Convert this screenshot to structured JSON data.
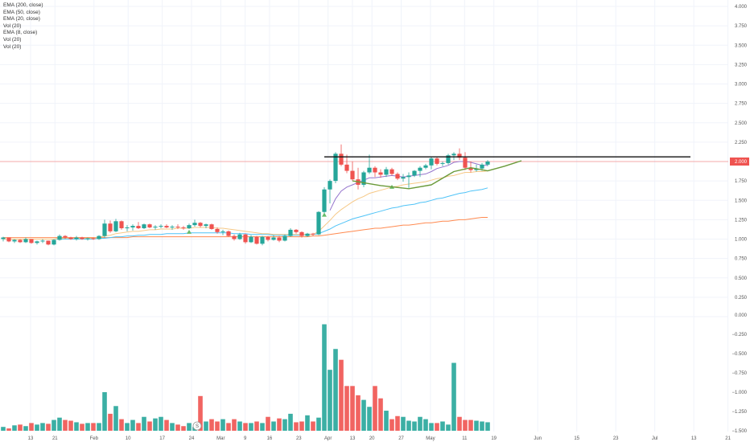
{
  "legend": [
    "EMA (200, close)",
    "EMA (50, close)",
    "EMA (20, close)",
    "Vol (20)",
    "EMA (8, close)",
    "Vol (20)",
    "Vol (20)"
  ],
  "price_badge": "2.000",
  "colors": {
    "up": "#26a69a",
    "down": "#ef5350",
    "ema8": "#9575cd",
    "ema20": "#f6c886",
    "ema50": "#4fc3f7",
    "ema200": "#ff8a50",
    "resistance": "#111111",
    "cup": "#6a9a3a",
    "price_line": "#f4a8a8",
    "grid": "#f0f3fa"
  },
  "chart_data": {
    "type": "candlestick",
    "x_ticks": [
      "13",
      "21",
      "Feb",
      "10",
      "17",
      "24",
      "Mar",
      "9",
      "16",
      "23",
      "Apr",
      "13",
      "20",
      "27",
      "May",
      "11",
      "19",
      "Jun",
      "15",
      "23",
      "Jul",
      "13",
      "21"
    ],
    "price_ticks": [
      "4.000",
      "3.750",
      "3.500",
      "3.250",
      "3.000",
      "2.750",
      "2.500",
      "2.250",
      "2.000",
      "1.750",
      "1.500",
      "1.250",
      "1.000",
      "0.750",
      "0.500",
      "0.250"
    ],
    "volume_ticks": [
      "0.000",
      "−0.250",
      "−0.500",
      "−0.750",
      "−1.000",
      "−1.250",
      "−1.500"
    ],
    "price_range": [
      0.0,
      4.05
    ],
    "last_price": 2.0,
    "candles": [
      [
        1.0,
        1.03,
        0.97,
        1.02
      ],
      [
        1.02,
        1.02,
        0.96,
        0.97
      ],
      [
        0.97,
        1.0,
        0.95,
        0.99
      ],
      [
        0.99,
        1.0,
        0.95,
        0.96
      ],
      [
        0.96,
        1.02,
        0.95,
        1.0
      ],
      [
        1.0,
        1.0,
        0.94,
        0.95
      ],
      [
        0.95,
        0.98,
        0.93,
        0.97
      ],
      [
        0.97,
        1.0,
        0.95,
        0.98
      ],
      [
        0.98,
        0.98,
        0.92,
        0.93
      ],
      [
        0.93,
        1.0,
        0.92,
        0.99
      ],
      [
        0.99,
        1.06,
        0.98,
        1.04
      ],
      [
        1.04,
        1.05,
        1.0,
        1.02
      ],
      [
        1.02,
        1.03,
        0.99,
        1.0
      ],
      [
        1.0,
        1.04,
        0.98,
        1.02
      ],
      [
        1.02,
        1.03,
        0.99,
        1.0
      ],
      [
        1.0,
        1.02,
        0.98,
        1.01
      ],
      [
        1.01,
        1.02,
        0.99,
        1.0
      ],
      [
        1.0,
        1.05,
        0.99,
        1.04
      ],
      [
        1.04,
        1.25,
        1.02,
        1.2
      ],
      [
        1.2,
        1.24,
        1.08,
        1.1
      ],
      [
        1.1,
        1.26,
        1.09,
        1.23
      ],
      [
        1.23,
        1.24,
        1.12,
        1.14
      ],
      [
        1.14,
        1.18,
        1.1,
        1.15
      ],
      [
        1.15,
        1.19,
        1.11,
        1.17
      ],
      [
        1.17,
        1.22,
        1.13,
        1.14
      ],
      [
        1.14,
        1.2,
        1.13,
        1.19
      ],
      [
        1.19,
        1.2,
        1.14,
        1.15
      ],
      [
        1.15,
        1.18,
        1.12,
        1.16
      ],
      [
        1.16,
        1.19,
        1.14,
        1.17
      ],
      [
        1.17,
        1.19,
        1.14,
        1.15
      ],
      [
        1.15,
        1.18,
        1.12,
        1.16
      ],
      [
        1.16,
        1.19,
        1.13,
        1.15
      ],
      [
        1.15,
        1.17,
        1.12,
        1.14
      ],
      [
        1.14,
        1.2,
        1.13,
        1.18
      ],
      [
        1.18,
        1.25,
        1.16,
        1.21
      ],
      [
        1.21,
        1.22,
        1.15,
        1.17
      ],
      [
        1.17,
        1.2,
        1.14,
        1.19
      ],
      [
        1.19,
        1.2,
        1.12,
        1.13
      ],
      [
        1.13,
        1.15,
        1.07,
        1.09
      ],
      [
        1.09,
        1.12,
        1.05,
        1.1
      ],
      [
        1.1,
        1.11,
        1.03,
        1.04
      ],
      [
        1.04,
        1.06,
        0.98,
        1.0
      ],
      [
        1.0,
        1.08,
        0.99,
        1.06
      ],
      [
        1.06,
        1.07,
        0.94,
        0.96
      ],
      [
        0.96,
        1.05,
        0.95,
        1.03
      ],
      [
        1.03,
        1.04,
        0.93,
        0.94
      ],
      [
        0.94,
        1.04,
        0.92,
        1.03
      ],
      [
        1.03,
        1.04,
        0.97,
        0.99
      ],
      [
        0.99,
        1.05,
        0.98,
        1.02
      ],
      [
        1.02,
        1.04,
        0.96,
        0.98
      ],
      [
        0.98,
        1.06,
        0.97,
        1.04
      ],
      [
        1.04,
        1.14,
        1.03,
        1.12
      ],
      [
        1.12,
        1.13,
        1.07,
        1.09
      ],
      [
        1.09,
        1.1,
        1.02,
        1.04
      ],
      [
        1.04,
        1.08,
        1.03,
        1.07
      ],
      [
        1.07,
        1.08,
        1.04,
        1.06
      ],
      [
        1.06,
        1.36,
        1.05,
        1.35
      ],
      [
        1.35,
        1.67,
        1.33,
        1.64
      ],
      [
        1.64,
        1.77,
        1.46,
        1.75
      ],
      [
        1.75,
        2.12,
        1.72,
        2.1
      ],
      [
        2.1,
        2.22,
        1.94,
        1.96
      ],
      [
        1.96,
        2.09,
        1.85,
        1.88
      ],
      [
        1.88,
        2.0,
        1.75,
        1.77
      ],
      [
        1.77,
        1.92,
        1.64,
        1.7
      ],
      [
        1.7,
        1.88,
        1.67,
        1.86
      ],
      [
        1.86,
        2.09,
        1.84,
        1.92
      ],
      [
        1.92,
        1.94,
        1.8,
        1.86
      ],
      [
        1.86,
        1.9,
        1.79,
        1.83
      ],
      [
        1.83,
        1.93,
        1.8,
        1.9
      ],
      [
        1.9,
        1.92,
        1.82,
        1.84
      ],
      [
        1.84,
        1.86,
        1.76,
        1.78
      ],
      [
        1.78,
        1.84,
        1.74,
        1.8
      ],
      [
        1.8,
        1.86,
        1.66,
        1.82
      ],
      [
        1.82,
        1.89,
        1.8,
        1.88
      ],
      [
        1.88,
        1.94,
        1.8,
        1.92
      ],
      [
        1.92,
        1.97,
        1.9,
        1.95
      ],
      [
        1.95,
        2.06,
        1.9,
        2.04
      ],
      [
        2.04,
        2.06,
        1.95,
        1.97
      ],
      [
        1.97,
        2.0,
        1.94,
        1.98
      ],
      [
        1.98,
        2.1,
        1.96,
        2.08
      ],
      [
        2.08,
        2.12,
        2.02,
        2.1
      ],
      [
        2.1,
        2.17,
        2.02,
        2.05
      ],
      [
        2.05,
        2.12,
        1.89,
        1.92
      ],
      [
        1.92,
        2.0,
        1.86,
        1.89
      ],
      [
        1.89,
        1.96,
        1.87,
        1.91
      ],
      [
        1.91,
        1.98,
        1.88,
        1.96
      ],
      [
        1.96,
        2.02,
        1.94,
        2.0
      ]
    ],
    "volume": [
      0.05,
      0.03,
      0.07,
      0.08,
      0.06,
      0.1,
      0.08,
      0.1,
      0.09,
      0.14,
      0.17,
      0.14,
      0.13,
      0.11,
      0.09,
      0.1,
      0.1,
      0.1,
      0.5,
      0.22,
      0.32,
      0.15,
      0.1,
      0.14,
      0.1,
      0.18,
      0.12,
      0.16,
      0.18,
      0.14,
      0.1,
      0.08,
      0.06,
      0.1,
      0.05,
      0.45,
      0.12,
      0.15,
      0.12,
      0.15,
      0.1,
      0.15,
      0.12,
      0.1,
      0.1,
      0.12,
      0.1,
      0.18,
      0.12,
      0.16,
      0.15,
      0.22,
      0.11,
      0.12,
      0.2,
      0.12,
      0.17,
      1.38,
      0.79,
      1.06,
      0.92,
      0.58,
      0.58,
      0.46,
      0.4,
      0.31,
      0.58,
      0.42,
      0.26,
      0.15,
      0.19,
      0.18,
      0.13,
      0.12,
      0.18,
      0.15,
      0.1,
      0.1,
      0.12,
      0.08,
      0.88,
      0.18,
      0.14,
      0.14,
      0.13,
      0.12,
      0.11
    ],
    "ema8": [
      null,
      null,
      null,
      null,
      null,
      null,
      null,
      null,
      null,
      null,
      null,
      null,
      null,
      null,
      null,
      null,
      null,
      null,
      null,
      null,
      null,
      null,
      null,
      null,
      null,
      null,
      null,
      null,
      null,
      null,
      null,
      null,
      null,
      null,
      null,
      null,
      null,
      null,
      null,
      null,
      null,
      null,
      null,
      null,
      null,
      null,
      null,
      null,
      null,
      null,
      null,
      null,
      null,
      null,
      null,
      null,
      null,
      null,
      1.37,
      1.52,
      1.62,
      1.67,
      1.7,
      1.73,
      1.76,
      1.79,
      1.79,
      1.8,
      1.81,
      1.82,
      1.81,
      1.8,
      1.81,
      1.82,
      1.83,
      1.84,
      1.87,
      1.91,
      1.93,
      1.95,
      1.99,
      2.0,
      2.0,
      1.99,
      1.97,
      1.95,
      1.95
    ],
    "ema20": [
      1.0,
      1.0,
      1.0,
      1.0,
      1.0,
      1.0,
      1.0,
      1.0,
      1.0,
      1.0,
      1.01,
      1.01,
      1.01,
      1.01,
      1.01,
      1.01,
      1.01,
      1.02,
      1.04,
      1.05,
      1.07,
      1.08,
      1.09,
      1.1,
      1.1,
      1.11,
      1.12,
      1.12,
      1.13,
      1.13,
      1.13,
      1.14,
      1.14,
      1.14,
      1.15,
      1.15,
      1.15,
      1.15,
      1.14,
      1.14,
      1.13,
      1.12,
      1.11,
      1.1,
      1.09,
      1.08,
      1.07,
      1.07,
      1.06,
      1.06,
      1.06,
      1.06,
      1.06,
      1.06,
      1.06,
      1.06,
      1.1,
      1.17,
      1.24,
      1.32,
      1.38,
      1.43,
      1.48,
      1.52,
      1.55,
      1.59,
      1.61,
      1.63,
      1.65,
      1.67,
      1.68,
      1.7,
      1.71,
      1.72,
      1.73,
      1.74,
      1.76,
      1.78,
      1.79,
      1.81,
      1.82,
      1.84,
      1.86,
      1.86,
      1.87,
      1.87,
      1.88
    ],
    "ema50": [
      1.0,
      1.0,
      1.0,
      1.0,
      1.0,
      1.0,
      1.0,
      1.0,
      1.0,
      1.0,
      1.0,
      1.0,
      1.0,
      1.0,
      1.0,
      1.0,
      1.0,
      1.01,
      1.01,
      1.02,
      1.03,
      1.03,
      1.04,
      1.04,
      1.05,
      1.05,
      1.06,
      1.06,
      1.06,
      1.07,
      1.07,
      1.07,
      1.07,
      1.08,
      1.08,
      1.08,
      1.08,
      1.08,
      1.08,
      1.08,
      1.08,
      1.07,
      1.07,
      1.07,
      1.06,
      1.06,
      1.06,
      1.06,
      1.05,
      1.05,
      1.05,
      1.05,
      1.05,
      1.05,
      1.06,
      1.06,
      1.07,
      1.1,
      1.13,
      1.17,
      1.2,
      1.23,
      1.26,
      1.28,
      1.3,
      1.32,
      1.34,
      1.36,
      1.38,
      1.4,
      1.41,
      1.43,
      1.44,
      1.45,
      1.47,
      1.48,
      1.5,
      1.52,
      1.53,
      1.55,
      1.57,
      1.59,
      1.6,
      1.62,
      1.63,
      1.64,
      1.66
    ],
    "ema200": [
      1.02,
      1.02,
      1.02,
      1.02,
      1.02,
      1.02,
      1.02,
      1.02,
      1.02,
      1.02,
      1.02,
      1.02,
      1.02,
      1.02,
      1.02,
      1.02,
      1.02,
      1.02,
      1.02,
      1.02,
      1.02,
      1.02,
      1.02,
      1.03,
      1.03,
      1.03,
      1.03,
      1.03,
      1.03,
      1.03,
      1.03,
      1.03,
      1.03,
      1.03,
      1.03,
      1.03,
      1.03,
      1.03,
      1.03,
      1.03,
      1.03,
      1.03,
      1.03,
      1.03,
      1.03,
      1.03,
      1.03,
      1.03,
      1.03,
      1.03,
      1.03,
      1.03,
      1.03,
      1.03,
      1.03,
      1.04,
      1.04,
      1.05,
      1.06,
      1.07,
      1.08,
      1.09,
      1.1,
      1.11,
      1.12,
      1.13,
      1.14,
      1.14,
      1.15,
      1.16,
      1.17,
      1.18,
      1.18,
      1.19,
      1.2,
      1.21,
      1.21,
      1.22,
      1.23,
      1.23,
      1.24,
      1.25,
      1.25,
      1.26,
      1.27,
      1.28,
      1.28
    ],
    "resistance": {
      "from_index": 57,
      "to_index": 122,
      "price": 2.06
    },
    "cup": [
      [
        62,
        1.75
      ],
      [
        67,
        1.69
      ],
      [
        72,
        1.65
      ],
      [
        76,
        1.7
      ],
      [
        80,
        1.87
      ],
      [
        83,
        1.92
      ],
      [
        86,
        1.88
      ],
      [
        89,
        1.94
      ],
      [
        92,
        2.01
      ]
    ],
    "triangle_markers": [
      [
        33,
        1.09
      ],
      [
        57,
        1.31
      ],
      [
        69,
        1.67
      ]
    ],
    "event_marker": {
      "index": 33,
      "label": "S"
    }
  }
}
